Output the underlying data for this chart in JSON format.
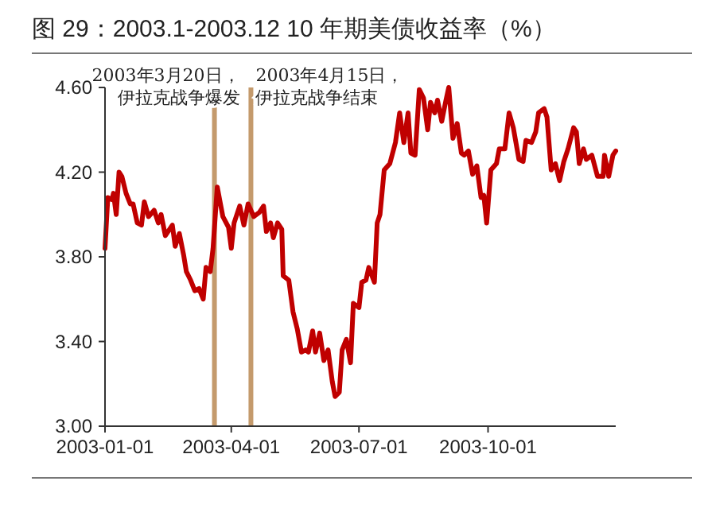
{
  "chart_data": {
    "type": "line",
    "title": "图 29：2003.1-2003.12 10 年期美债收益率（%）",
    "x": [
      "2003-01-01",
      "2003-01-03",
      "2003-01-06",
      "2003-01-07",
      "2003-01-09",
      "2003-01-11",
      "2003-01-13",
      "2003-01-16",
      "2003-01-19",
      "2003-01-21",
      "2003-01-24",
      "2003-01-27",
      "2003-01-29",
      "2003-02-01",
      "2003-02-05",
      "2003-02-08",
      "2003-02-10",
      "2003-02-13",
      "2003-02-18",
      "2003-02-20",
      "2003-02-23",
      "2003-02-26",
      "2003-02-28",
      "2003-03-03",
      "2003-03-06",
      "2003-03-09",
      "2003-03-12",
      "2003-03-14",
      "2003-03-17",
      "2003-03-19",
      "2003-03-22",
      "2003-03-26",
      "2003-03-30",
      "2003-04-01",
      "2003-04-03",
      "2003-04-07",
      "2003-04-10",
      "2003-04-13",
      "2003-04-17",
      "2003-04-21",
      "2003-04-24",
      "2003-04-26",
      "2003-04-29",
      "2003-05-01",
      "2003-05-04",
      "2003-05-07",
      "2003-05-08",
      "2003-05-12",
      "2003-05-15",
      "2003-05-18",
      "2003-05-21",
      "2003-05-24",
      "2003-05-26",
      "2003-05-29",
      "2003-05-31",
      "2003-06-03",
      "2003-06-06",
      "2003-06-09",
      "2003-06-12",
      "2003-06-14",
      "2003-06-17",
      "2003-06-19",
      "2003-06-22",
      "2003-06-25",
      "2003-06-27",
      "2003-07-01",
      "2003-07-03",
      "2003-07-06",
      "2003-07-08",
      "2003-07-12",
      "2003-07-14",
      "2003-07-16",
      "2003-07-19",
      "2003-07-23",
      "2003-07-27",
      "2003-07-30",
      "2003-08-02",
      "2003-08-05",
      "2003-08-07",
      "2003-08-10",
      "2003-08-13",
      "2003-08-16",
      "2003-08-19",
      "2003-08-21",
      "2003-08-24",
      "2003-08-26",
      "2003-08-29",
      "2003-09-01",
      "2003-09-03",
      "2003-09-06",
      "2003-09-09",
      "2003-09-12",
      "2003-09-14",
      "2003-09-17",
      "2003-09-20",
      "2003-09-23",
      "2003-09-26",
      "2003-09-28",
      "2003-09-30",
      "2003-10-03",
      "2003-10-07",
      "2003-10-09",
      "2003-10-13",
      "2003-10-16",
      "2003-10-19",
      "2003-10-23",
      "2003-10-26",
      "2003-10-28",
      "2003-11-01",
      "2003-11-04",
      "2003-11-06",
      "2003-11-10",
      "2003-11-12",
      "2003-11-15",
      "2003-11-18",
      "2003-11-21",
      "2003-11-24",
      "2003-11-27",
      "2003-12-01",
      "2003-12-03",
      "2003-12-05",
      "2003-12-08",
      "2003-12-10",
      "2003-12-14",
      "2003-12-18",
      "2003-12-22",
      "2003-12-23",
      "2003-12-26",
      "2003-12-29",
      "2003-12-31"
    ],
    "series": [
      {
        "color": "#c00000",
        "values": [
          3.84,
          4.08,
          4.07,
          4.1,
          4.0,
          4.2,
          4.18,
          4.1,
          4.05,
          4.05,
          3.96,
          3.95,
          4.06,
          3.99,
          4.02,
          3.96,
          4.0,
          3.9,
          3.95,
          3.85,
          3.91,
          3.81,
          3.73,
          3.69,
          3.64,
          3.65,
          3.6,
          3.75,
          3.73,
          3.84,
          4.13,
          3.99,
          3.94,
          3.84,
          3.96,
          4.04,
          3.95,
          4.05,
          3.99,
          4.01,
          4.04,
          3.92,
          3.96,
          3.89,
          3.96,
          3.93,
          3.71,
          3.69,
          3.54,
          3.46,
          3.35,
          3.36,
          3.35,
          3.45,
          3.35,
          3.44,
          3.31,
          3.36,
          3.21,
          3.14,
          3.16,
          3.36,
          3.41,
          3.3,
          3.58,
          3.56,
          3.68,
          3.69,
          3.75,
          3.68,
          3.96,
          4.0,
          4.21,
          4.24,
          4.34,
          4.48,
          4.34,
          4.48,
          4.29,
          4.28,
          4.59,
          4.55,
          4.4,
          4.53,
          4.48,
          4.54,
          4.44,
          4.54,
          4.6,
          4.36,
          4.43,
          4.29,
          4.28,
          4.3,
          4.19,
          4.23,
          4.08,
          4.09,
          3.96,
          4.21,
          4.24,
          4.31,
          4.31,
          4.48,
          4.41,
          4.26,
          4.25,
          4.35,
          4.34,
          4.39,
          4.48,
          4.5,
          4.46,
          4.21,
          4.24,
          4.16,
          4.25,
          4.31,
          4.41,
          4.39,
          4.24,
          4.31,
          4.26,
          4.28,
          4.18,
          4.18,
          4.28,
          4.18,
          4.28,
          4.3
        ]
      }
    ],
    "xlim": [
      "2003-01-01",
      "2003-12-31"
    ],
    "xticks": [
      "2003-01-01",
      "2003-04-01",
      "2003-07-01",
      "2003-10-01"
    ],
    "ylim": [
      3.0,
      4.6
    ],
    "yticks": [
      {
        "value": 3.0,
        "label": "3.00"
      },
      {
        "value": 3.4,
        "label": "3.40"
      },
      {
        "value": 3.8,
        "label": "3.80"
      },
      {
        "value": 4.2,
        "label": "4.20"
      },
      {
        "value": 4.6,
        "label": "4.60"
      }
    ],
    "ref_lines": [
      {
        "axis": "x",
        "value": "2003-03-20",
        "label": "2003年3月20日，伊拉克战争爆发",
        "color": "#c49a6c"
      },
      {
        "axis": "x",
        "value": "2003-04-15",
        "label": "2003年4月15日，伊拉克战争结束",
        "color": "#c49a6c"
      }
    ],
    "grid": false,
    "marker": "none",
    "line_style": "solid"
  }
}
